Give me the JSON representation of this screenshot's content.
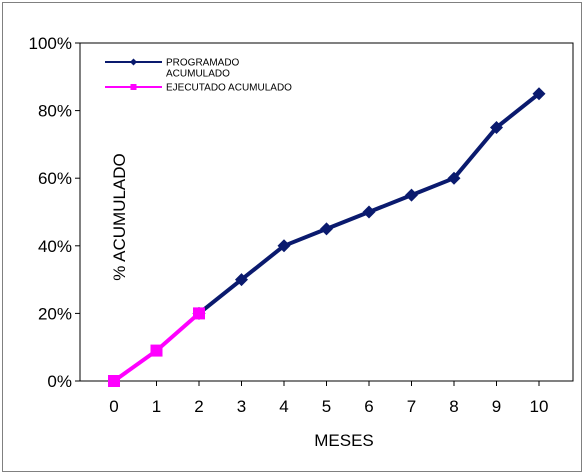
{
  "chart_data": {
    "type": "line",
    "title": "",
    "xlabel": "MESES",
    "ylabel": "% ACUMULADO",
    "x": [
      0,
      1,
      2,
      3,
      4,
      5,
      6,
      7,
      8,
      9,
      10
    ],
    "ylim": [
      0,
      100
    ],
    "yticks": [
      "0%",
      "20%",
      "40%",
      "60%",
      "80%",
      "100%"
    ],
    "legend_position": "top-left",
    "series": [
      {
        "name": "PROGRAMADO ACUMULADO",
        "name_lines": [
          "PROGRAMADO",
          "ACUMULADO"
        ],
        "color": "#0a1a6e",
        "marker": "diamond",
        "x": [
          2,
          3,
          4,
          5,
          6,
          7,
          8,
          9,
          10
        ],
        "values": [
          20,
          30,
          40,
          45,
          50,
          55,
          60,
          75,
          85
        ]
      },
      {
        "name": "EJECUTADO ACUMULADO",
        "name_lines": [
          "EJECUTADO ACUMULADO"
        ],
        "color": "#ff00ff",
        "marker": "square",
        "x": [
          0,
          1,
          2
        ],
        "values": [
          0,
          9,
          20
        ]
      }
    ]
  }
}
